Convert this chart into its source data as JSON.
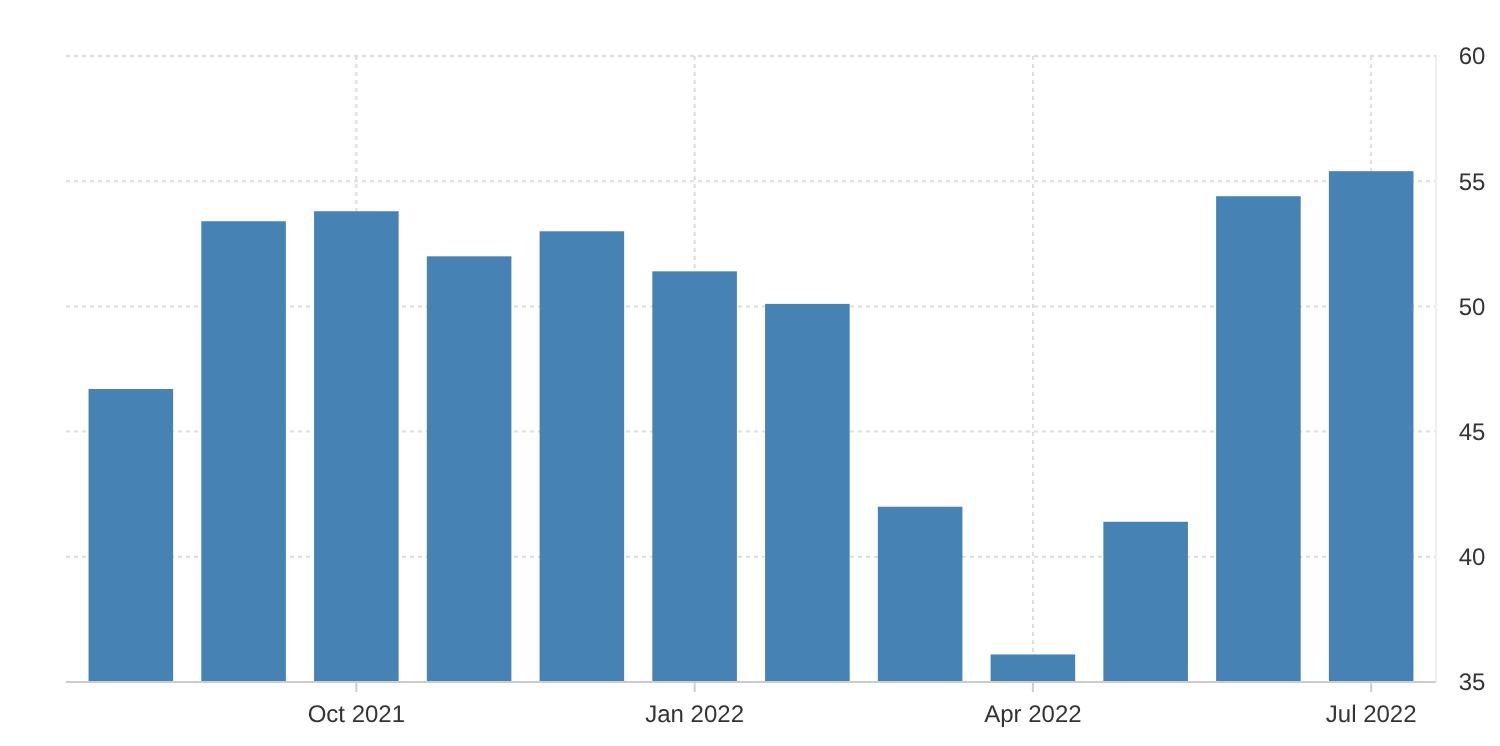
{
  "chart_data": {
    "type": "bar",
    "categories": [
      null,
      null,
      "Oct 2021",
      null,
      null,
      "Jan 2022",
      null,
      null,
      "Apr 2022",
      null,
      null,
      "Jul 2022"
    ],
    "values": [
      46.7,
      53.4,
      53.8,
      52.0,
      53.0,
      51.4,
      50.1,
      42.0,
      36.1,
      41.4,
      54.4,
      55.4
    ],
    "color": "#4682b4",
    "ylim": [
      35,
      60
    ],
    "yticks": [
      35,
      40,
      45,
      50,
      55,
      60
    ],
    "grid": true
  }
}
